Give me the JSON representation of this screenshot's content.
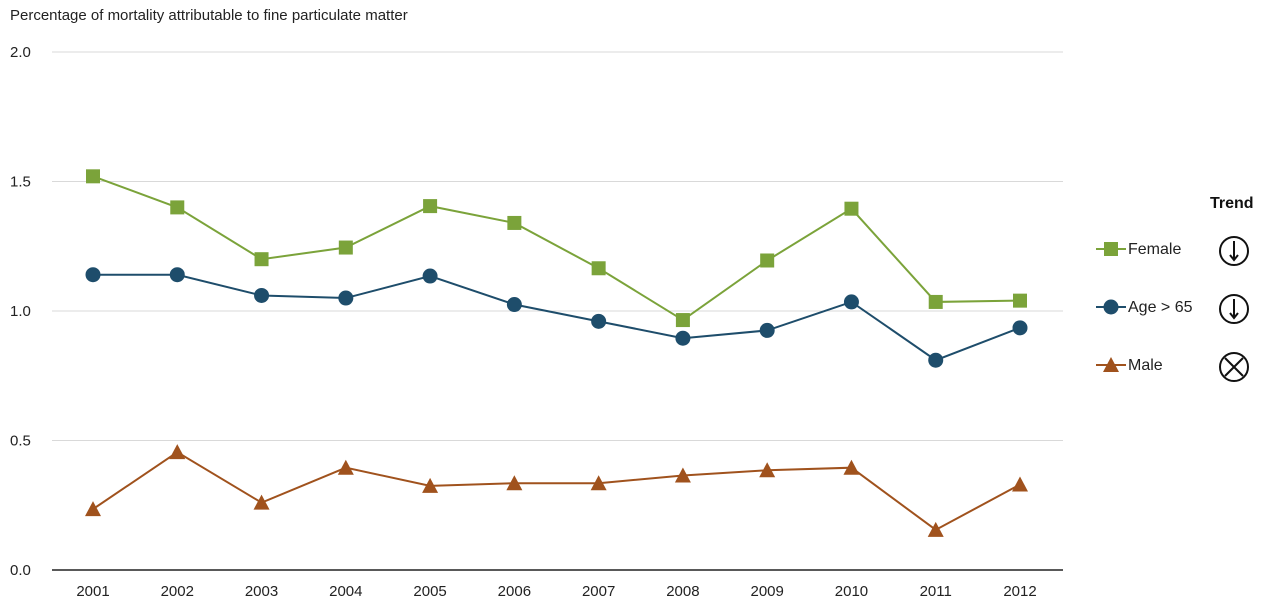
{
  "chart_data": {
    "type": "line",
    "title": "",
    "ylabel": "Percentage of mortality attributable to fine particulate matter",
    "xlabel": "",
    "x": [
      "2001",
      "2002",
      "2003",
      "2004",
      "2005",
      "2006",
      "2007",
      "2008",
      "2009",
      "2010",
      "2011",
      "2012"
    ],
    "ylim": [
      0,
      2.0
    ],
    "yticks": [
      "0.0",
      "0.5",
      "1.0",
      "1.5",
      "2.0"
    ],
    "grid": "horizontal",
    "legend_position": "right",
    "series": [
      {
        "name": "Female",
        "marker": "square",
        "color": "#7ba33a",
        "values": [
          1.52,
          1.4,
          1.2,
          1.245,
          1.405,
          1.34,
          1.165,
          0.965,
          1.195,
          1.395,
          1.035,
          1.04
        ]
      },
      {
        "name": "Age > 65",
        "marker": "circle",
        "color": "#1e4d6b",
        "values": [
          1.14,
          1.14,
          1.06,
          1.05,
          1.135,
          1.025,
          0.96,
          0.895,
          0.925,
          1.035,
          0.81,
          0.935
        ]
      },
      {
        "name": "Male",
        "marker": "triangle",
        "color": "#a0521d",
        "values": [
          0.235,
          0.455,
          0.26,
          0.395,
          0.325,
          0.335,
          0.335,
          0.365,
          0.385,
          0.395,
          0.155,
          0.33
        ]
      }
    ]
  },
  "legend": {
    "trend_header": "Trend",
    "items": [
      {
        "label": "Female",
        "trend_icon": "down-arrow-circle-icon"
      },
      {
        "label": "Age > 65",
        "trend_icon": "down-arrow-circle-icon"
      },
      {
        "label": "Male",
        "trend_icon": "x-circle-icon"
      }
    ]
  }
}
